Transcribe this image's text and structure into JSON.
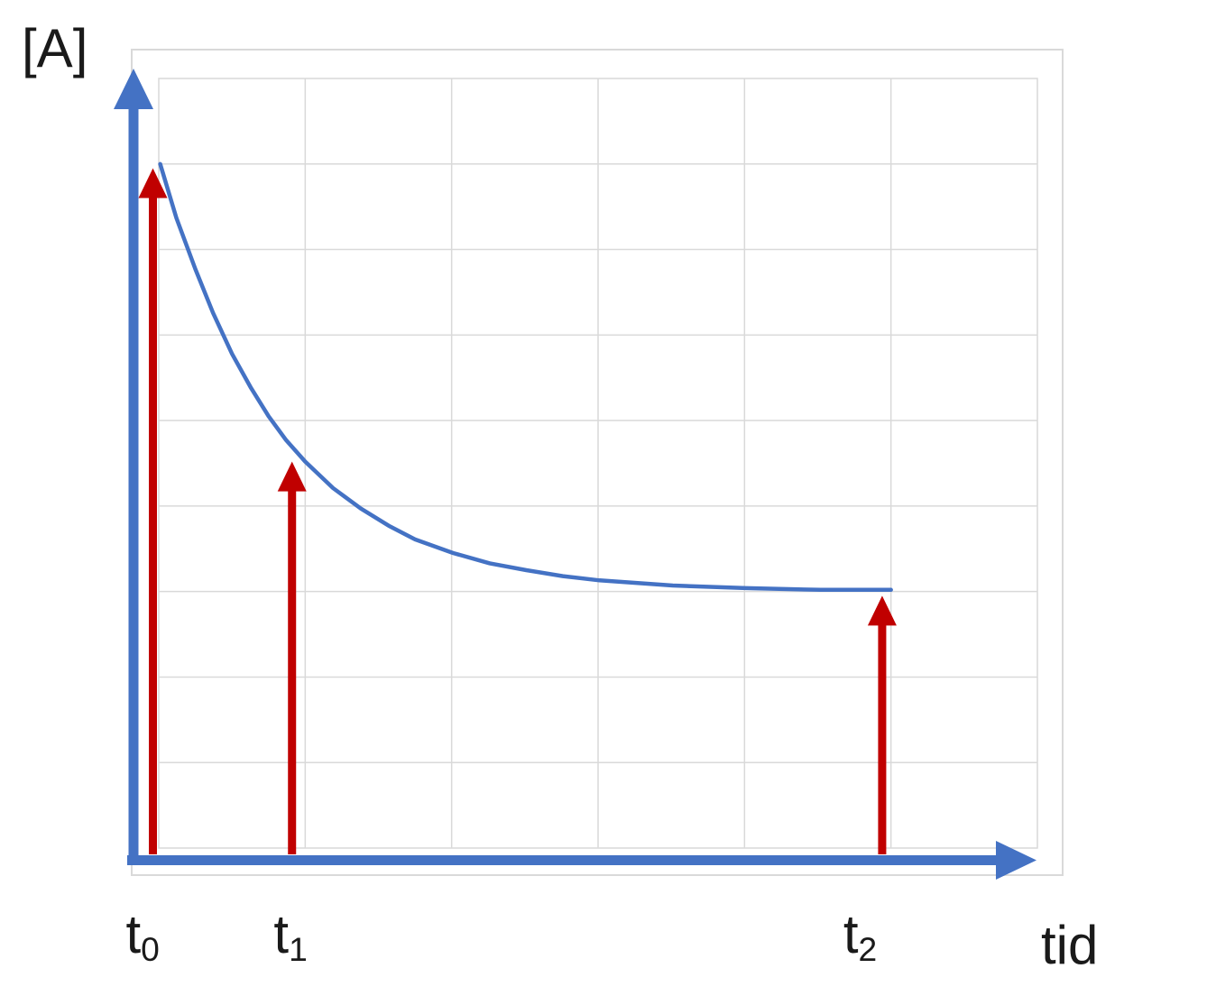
{
  "chart_data": {
    "type": "line",
    "title": "",
    "xlabel": "tid",
    "ylabel": "[A]",
    "x_range": [
      0,
      6
    ],
    "y_range": [
      0,
      9
    ],
    "grid": true,
    "legend": false,
    "description": "Qualitative exponential decay of reactant concentration [A] versus time (tid), with red arrows marking the concentration at times t0, t1 and t2; axes are unlabeled arrow axes on a light grey grid.",
    "colors": {
      "axis": "#4472C4",
      "curve": "#4472C4",
      "marker_arrows": "#C00000",
      "gridlines": "#D9D9D9",
      "frame": "#D9D9D9",
      "text": "#1A1A1A",
      "background": "#FFFFFF"
    },
    "series": [
      {
        "name": "A-concentration-decay",
        "shape": "exponential-decay",
        "start_y": 8.0,
        "asymptote_y": 3.0,
        "points": [
          [
            0.01,
            8.0
          ],
          [
            0.12,
            7.37
          ],
          [
            0.25,
            6.77
          ],
          [
            0.37,
            6.26
          ],
          [
            0.5,
            5.78
          ],
          [
            0.63,
            5.38
          ],
          [
            0.75,
            5.05
          ],
          [
            0.87,
            4.77
          ],
          [
            1.0,
            4.52
          ],
          [
            1.19,
            4.21
          ],
          [
            1.38,
            3.97
          ],
          [
            1.57,
            3.77
          ],
          [
            1.75,
            3.61
          ],
          [
            2.01,
            3.45
          ],
          [
            2.26,
            3.33
          ],
          [
            2.51,
            3.25
          ],
          [
            2.76,
            3.18
          ],
          [
            3.01,
            3.13
          ],
          [
            3.51,
            3.07
          ],
          [
            4.01,
            3.04
          ],
          [
            4.52,
            3.02
          ],
          [
            5.0,
            3.02
          ]
        ]
      }
    ],
    "annotations": [
      {
        "id": "t0",
        "label_base": "t",
        "label_sub": "0",
        "arrow_x": -0.04,
        "arrow_tip_y": 7.95,
        "label_x": -0.11
      },
      {
        "id": "t1",
        "label_base": "t",
        "label_sub": "1",
        "arrow_x": 0.91,
        "arrow_tip_y": 4.52,
        "label_x": 0.9
      },
      {
        "id": "t2",
        "label_base": "t",
        "label_sub": "2",
        "arrow_x": 4.94,
        "arrow_tip_y": 2.95,
        "label_x": 4.79
      }
    ]
  }
}
